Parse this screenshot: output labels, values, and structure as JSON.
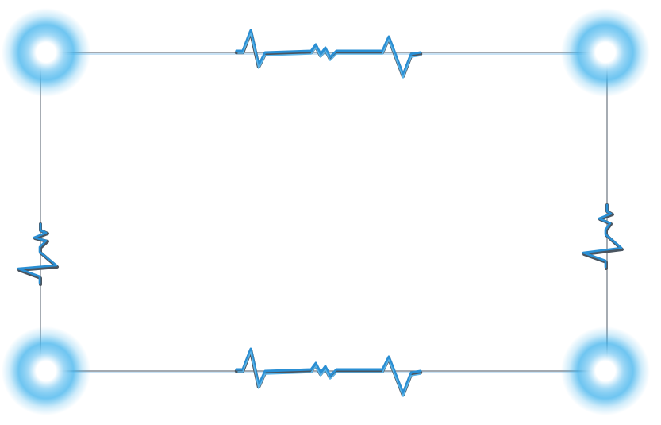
{
  "frame": {
    "style": "heartbeat-line border with glowing corner orbs",
    "line_color": "#2a8fd4",
    "line_shadow_color": "#555d66",
    "glow_color": "#3fb2ec",
    "orb_center_color": "#ffffff",
    "background_color": "#ffffff",
    "corner_icons": [
      "glow-orb-icon",
      "glow-orb-icon",
      "glow-orb-icon",
      "glow-orb-icon"
    ],
    "pulse_icons": [
      "heartbeat-pulse-icon"
    ]
  }
}
